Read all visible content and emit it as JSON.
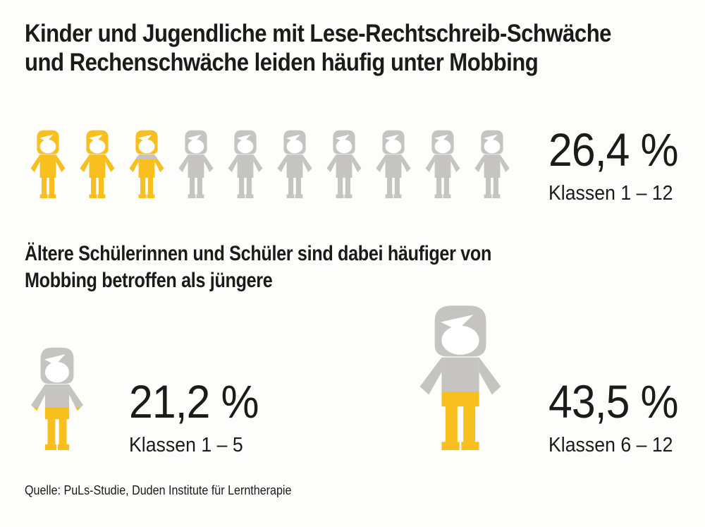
{
  "colors": {
    "yellow": "#F8BF1E",
    "gray": "#C5C4C1",
    "face": "#FFFFFF",
    "text": "#1B1B19",
    "background": "#FDFDFC"
  },
  "title": {
    "line1": "Kinder und Jugendliche mit Lese-Rechtschreib-Schwäche",
    "line2": "und Rechenschwäche leiden häufig unter Mobbing"
  },
  "row_chart": {
    "value": "26,4 %",
    "label": "Klassen 1 – 12",
    "figures": [
      {
        "stops": [
          [
            0,
            "yellow"
          ],
          [
            1,
            "yellow"
          ]
        ],
        "arms": "gradient"
      },
      {
        "stops": [
          [
            0,
            "yellow"
          ],
          [
            1,
            "yellow"
          ]
        ],
        "arms": "gradient"
      },
      {
        "stops": [
          [
            0,
            "yellow"
          ],
          [
            0.37,
            "yellow"
          ],
          [
            0.37,
            "gray"
          ],
          [
            0.43,
            "gray"
          ],
          [
            0.43,
            "yellow"
          ],
          [
            1,
            "yellow"
          ]
        ],
        "arms": "gradient"
      },
      {
        "stops": [
          [
            0,
            "gray"
          ],
          [
            1,
            "gray"
          ]
        ],
        "arms": "gradient"
      },
      {
        "stops": [
          [
            0,
            "gray"
          ],
          [
            1,
            "gray"
          ]
        ],
        "arms": "gradient"
      },
      {
        "stops": [
          [
            0,
            "gray"
          ],
          [
            1,
            "gray"
          ]
        ],
        "arms": "gradient"
      },
      {
        "stops": [
          [
            0,
            "gray"
          ],
          [
            1,
            "gray"
          ]
        ],
        "arms": "gradient"
      },
      {
        "stops": [
          [
            0,
            "gray"
          ],
          [
            1,
            "gray"
          ]
        ],
        "arms": "gradient"
      },
      {
        "stops": [
          [
            0,
            "gray"
          ],
          [
            1,
            "gray"
          ]
        ],
        "arms": "gradient"
      },
      {
        "stops": [
          [
            0,
            "gray"
          ],
          [
            1,
            "gray"
          ]
        ],
        "arms": "gradient"
      }
    ]
  },
  "subtitle": {
    "line1": "Ältere Schülerinnen und Schüler sind dabei häufiger von",
    "line2": "Mobbing betroffen als jüngere"
  },
  "lower_chart": {
    "small": {
      "value": "21,2 %",
      "label": "Klassen 1 – 5",
      "figure": {
        "stops": [
          [
            0,
            "gray"
          ],
          [
            0.582,
            "gray"
          ],
          [
            0.582,
            "yellow"
          ],
          [
            1,
            "yellow"
          ]
        ],
        "arms": "gradient"
      }
    },
    "large": {
      "value": "43,5 %",
      "label": "Klassen 6 – 12",
      "figure": {
        "stops": [
          [
            0,
            "gray"
          ],
          [
            0.597,
            "gray"
          ],
          [
            0.597,
            "yellow"
          ],
          [
            1,
            "yellow"
          ]
        ],
        "arms": "gray"
      }
    }
  },
  "source": "Quelle: PuLs-Studie, Duden Institute für Lerntherapie",
  "chart_data": [
    {
      "type": "bar",
      "subtype": "pictogram",
      "title": "Kinder und Jugendliche mit Lese-Rechtschreib-Schwäche und Rechenschwäche leiden häufig unter Mobbing",
      "categories": [
        "Klassen 1 – 12"
      ],
      "values": [
        26.4
      ],
      "unit": "%",
      "pictogram": {
        "total_icons": 10,
        "highlighted_icons": 2.64,
        "icon": "child-figure",
        "highlight_color": "#F8BF1E",
        "base_color": "#C5C4C1"
      }
    },
    {
      "type": "bar",
      "subtype": "pictogram",
      "title": "Ältere Schülerinnen und Schüler sind dabei häufiger von Mobbing betroffen als jüngere",
      "categories": [
        "Klassen 1 – 5",
        "Klassen 6 – 12"
      ],
      "values": [
        21.2,
        43.5
      ],
      "unit": "%",
      "note": "Two child figures of different sizes, lower body filled yellow from the bottom"
    }
  ]
}
